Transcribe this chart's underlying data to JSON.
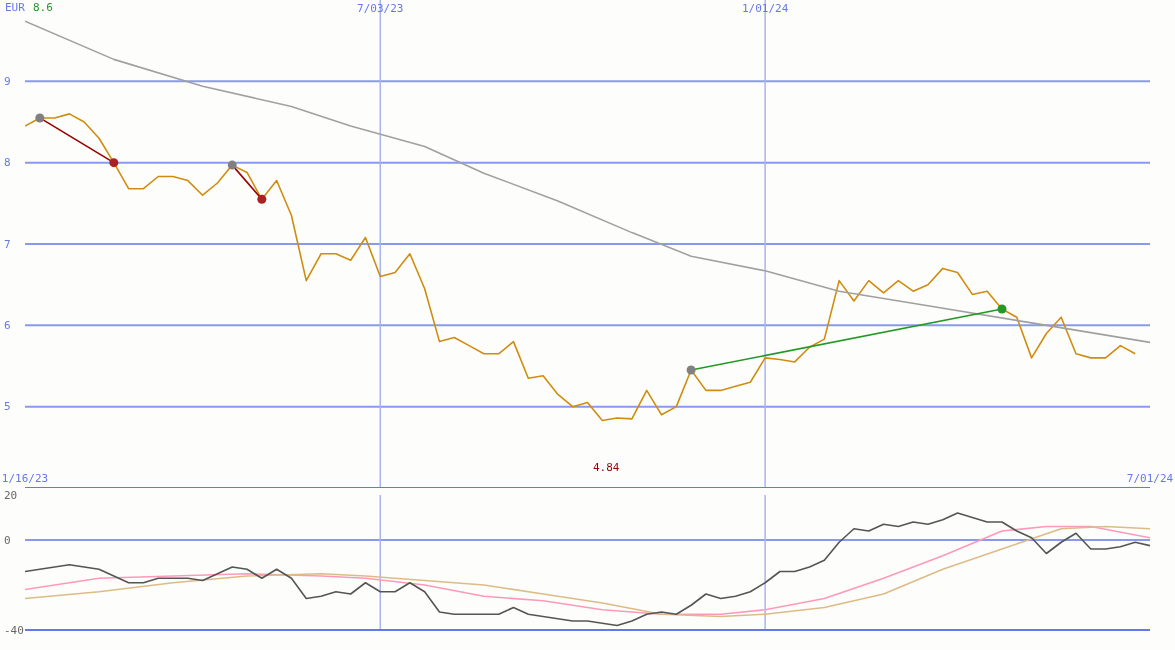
{
  "chart_data": [
    {
      "type": "line",
      "x": [
        "2023-01-16",
        "2023-01-23",
        "2023-01-30",
        "2023-02-06",
        "2023-02-13",
        "2023-02-20",
        "2023-02-27",
        "2023-03-06",
        "2023-03-13",
        "2023-03-20",
        "2023-03-27",
        "2023-04-03",
        "2023-04-10",
        "2023-04-17",
        "2023-04-24",
        "2023-05-01",
        "2023-05-08",
        "2023-05-15",
        "2023-05-22",
        "2023-05-29",
        "2023-06-05",
        "2023-06-12",
        "2023-06-19",
        "2023-06-26",
        "2023-07-03",
        "2023-07-10",
        "2023-07-17",
        "2023-07-24",
        "2023-07-31",
        "2023-08-07",
        "2023-08-14",
        "2023-08-21",
        "2023-08-28",
        "2023-09-04",
        "2023-09-11",
        "2023-09-18",
        "2023-09-25",
        "2023-10-02",
        "2023-10-09",
        "2023-10-16",
        "2023-10-23",
        "2023-10-30",
        "2023-11-06",
        "2023-11-13",
        "2023-11-20",
        "2023-11-27",
        "2023-12-04",
        "2023-12-11",
        "2023-12-18",
        "2023-12-25",
        "2024-01-01",
        "2024-01-08",
        "2024-01-15",
        "2024-01-22",
        "2024-01-29",
        "2024-02-05",
        "2024-02-12",
        "2024-02-19",
        "2024-02-26",
        "2024-03-04",
        "2024-03-11",
        "2024-03-18",
        "2024-03-25",
        "2024-04-01",
        "2024-04-08",
        "2024-04-15",
        "2024-04-22",
        "2024-04-29",
        "2024-05-06",
        "2024-05-13",
        "2024-05-20",
        "2024-05-27",
        "2024-06-03",
        "2024-06-10",
        "2024-06-17",
        "2024-06-24"
      ],
      "xlim": [
        "2023-01-16",
        "2024-07-01"
      ],
      "xticks": [
        {
          "value": "2023-01-16",
          "label": "1/16/23"
        },
        {
          "value": "2024-07-01",
          "label": "7/01/24"
        }
      ],
      "x2lim": [
        "2023-01-16",
        "2024-07-01"
      ],
      "x2ticks": [
        {
          "value": "2023-07-03",
          "label": "7/03/23"
        },
        {
          "value": "2024-01-01",
          "label": "1/01/24"
        }
      ],
      "ylim": [
        4,
        10
      ],
      "yticks": [
        5,
        6,
        7,
        8,
        9
      ],
      "grid": true,
      "marker": "none",
      "line_style": "solid",
      "annotations": [
        "EUR",
        "8.6",
        "4.84"
      ],
      "series": [
        {
          "color": "#d08c10",
          "values": [
            8.45,
            8.55,
            8.55,
            8.6,
            8.5,
            8.3,
            8.0,
            7.68,
            7.68,
            7.83,
            7.83,
            7.78,
            7.6,
            7.75,
            7.97,
            7.88,
            7.55,
            7.78,
            7.35,
            6.55,
            6.88,
            6.88,
            6.8,
            7.08,
            6.6,
            6.65,
            6.88,
            6.45,
            5.8,
            5.85,
            5.75,
            5.65,
            5.65,
            5.8,
            5.35,
            5.38,
            5.15,
            5.0,
            5.05,
            4.83,
            4.86,
            4.85,
            5.2,
            4.9,
            5.0,
            5.45,
            5.2,
            5.2,
            5.25,
            5.3,
            5.6,
            5.58,
            5.55,
            5.73,
            5.83,
            6.55,
            6.3,
            6.55,
            6.4,
            6.55,
            6.42,
            6.5,
            6.7,
            6.65,
            6.38,
            6.42,
            6.2,
            6.1,
            5.6,
            5.9,
            6.1,
            5.65,
            5.6,
            5.6,
            5.75,
            5.65
          ]
        },
        {
          "color": "#a0a0a0",
          "x": [
            "2023-01-16",
            "2023-02-27",
            "2023-04-10",
            "2023-05-22",
            "2023-06-19",
            "2023-07-24",
            "2023-08-21",
            "2023-09-25",
            "2023-10-30",
            "2023-11-27",
            "2024-01-01",
            "2024-02-05",
            "2024-03-18",
            "2024-05-06",
            "2024-07-01"
          ],
          "values": [
            9.74,
            9.27,
            8.94,
            8.69,
            8.45,
            8.2,
            7.87,
            7.53,
            7.14,
            6.85,
            6.67,
            6.42,
            6.24,
            6.03,
            5.79
          ]
        },
        {
          "color": "#990000",
          "x": [
            "2023-01-23",
            "2023-02-27"
          ],
          "values": [
            8.55,
            8.0
          ]
        },
        {
          "color": "#990000",
          "x": [
            "2023-04-24",
            "2023-05-08"
          ],
          "values": [
            7.97,
            7.55
          ]
        },
        {
          "color": "#229922",
          "x": [
            "2023-11-27",
            "2024-04-22"
          ],
          "values": [
            5.45,
            6.2
          ]
        },
        {
          "type": "scatter",
          "marker": "circle",
          "color": "#808080",
          "x": [
            "2023-01-23",
            "2023-04-24",
            "2023-11-27"
          ],
          "values": [
            8.55,
            7.97,
            5.45
          ]
        },
        {
          "type": "scatter",
          "marker": "circle",
          "color": "#aa2222",
          "x": [
            "2023-02-27",
            "2023-05-08"
          ],
          "values": [
            8.0,
            7.55
          ]
        },
        {
          "type": "scatter",
          "marker": "circle",
          "color": "#229922",
          "x": [
            "2024-04-22"
          ],
          "values": [
            6.2
          ]
        }
      ]
    },
    {
      "type": "line",
      "x": [
        "2023-01-16",
        "2023-01-23",
        "2023-01-30",
        "2023-02-06",
        "2023-02-13",
        "2023-02-20",
        "2023-02-27",
        "2023-03-06",
        "2023-03-13",
        "2023-03-20",
        "2023-03-27",
        "2023-04-03",
        "2023-04-10",
        "2023-04-17",
        "2023-04-24",
        "2023-05-01",
        "2023-05-08",
        "2023-05-15",
        "2023-05-22",
        "2023-05-29",
        "2023-06-05",
        "2023-06-12",
        "2023-06-19",
        "2023-06-26",
        "2023-07-03",
        "2023-07-10",
        "2023-07-17",
        "2023-07-24",
        "2023-07-31",
        "2023-08-07",
        "2023-08-14",
        "2023-08-21",
        "2023-08-28",
        "2023-09-04",
        "2023-09-11",
        "2023-09-18",
        "2023-09-25",
        "2023-10-02",
        "2023-10-09",
        "2023-10-16",
        "2023-10-23",
        "2023-10-30",
        "2023-11-06",
        "2023-11-13",
        "2023-11-20",
        "2023-11-27",
        "2023-12-04",
        "2023-12-11",
        "2023-12-18",
        "2023-12-25",
        "2024-01-01",
        "2024-01-08",
        "2024-01-15",
        "2024-01-22",
        "2024-01-29",
        "2024-02-05",
        "2024-02-12",
        "2024-02-19",
        "2024-02-26",
        "2024-03-04",
        "2024-03-11",
        "2024-03-18",
        "2024-03-25",
        "2024-04-01",
        "2024-04-08",
        "2024-04-15",
        "2024-04-22",
        "2024-04-29",
        "2024-05-06",
        "2024-05-13",
        "2024-05-20",
        "2024-05-27",
        "2024-06-03",
        "2024-06-10",
        "2024-06-17",
        "2024-06-24",
        "2024-07-01"
      ],
      "xlim": [
        "2023-01-16",
        "2024-07-01"
      ],
      "ylim": [
        -40,
        20
      ],
      "yticks": [
        -40,
        0,
        20
      ],
      "marker": "none",
      "line_style": "solid",
      "ref_lines": [
        {
          "axis": "y",
          "value": 0,
          "color": "#8899ee"
        },
        {
          "axis": "x",
          "value": "2023-07-03",
          "color": "#a8b4f0"
        },
        {
          "axis": "x",
          "value": "2024-01-01",
          "color": "#a8b4f0"
        }
      ],
      "series": [
        {
          "color": "#ff99bb",
          "x": [
            "2023-01-16",
            "2023-02-20",
            "2023-03-27",
            "2023-05-01",
            "2023-06-05",
            "2023-06-26",
            "2023-07-24",
            "2023-08-21",
            "2023-09-18",
            "2023-10-16",
            "2023-11-13",
            "2023-12-11",
            "2024-01-01",
            "2024-01-29",
            "2024-02-26",
            "2024-03-25",
            "2024-04-22",
            "2024-05-13",
            "2024-06-03",
            "2024-07-01"
          ],
          "values": [
            -22,
            -17,
            -16,
            -15,
            -16,
            -17,
            -20,
            -25,
            -27,
            -31,
            -33,
            -33,
            -31,
            -26,
            -17,
            -7,
            4,
            6,
            6,
            1
          ]
        },
        {
          "color": "#ddbb88",
          "x": [
            "2023-01-16",
            "2023-02-20",
            "2023-03-27",
            "2023-05-01",
            "2023-06-05",
            "2023-06-26",
            "2023-07-24",
            "2023-08-21",
            "2023-09-18",
            "2023-10-16",
            "2023-11-13",
            "2023-12-11",
            "2024-01-01",
            "2024-01-29",
            "2024-02-26",
            "2024-03-25",
            "2024-04-22",
            "2024-05-20",
            "2024-06-10",
            "2024-07-01"
          ],
          "values": [
            -26,
            -23,
            -19,
            -16,
            -15,
            -16,
            -18,
            -20,
            -24,
            -28,
            -33,
            -34,
            -33,
            -30,
            -24,
            -13,
            -4,
            5,
            6,
            5
          ]
        },
        {
          "color": "#555555",
          "values": [
            -14,
            -13,
            -12,
            -11,
            -12,
            -13,
            -16,
            -19,
            -19,
            -17,
            -17,
            -17,
            -18,
            -15,
            -12,
            -13,
            -17,
            -13,
            -17,
            -26,
            -25,
            -23,
            -24,
            -19,
            -23,
            -23,
            -19,
            -23,
            -32,
            -33,
            -33,
            -33,
            -33,
            -30,
            -33,
            -34,
            -35,
            -36,
            -36,
            -37,
            -38,
            -36,
            -33,
            -32,
            -33,
            -29,
            -24,
            -26,
            -25,
            -23,
            -19,
            -14,
            -14,
            -12,
            -9,
            -1,
            5,
            4,
            7,
            6,
            8,
            7,
            9,
            12,
            10,
            8,
            8,
            4,
            1,
            -6,
            -1,
            3,
            -4,
            -4,
            -3,
            -1,
            -2.5
          ]
        }
      ]
    }
  ]
}
